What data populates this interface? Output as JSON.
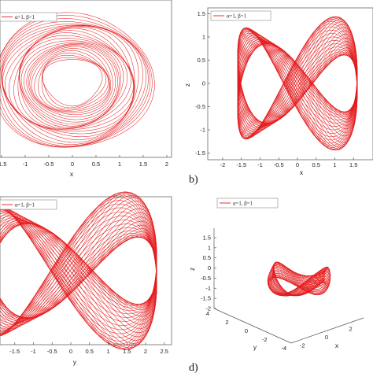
{
  "legend_label": "α=1, β=1",
  "curve_color": "#e41a1c",
  "chart_data": [
    {
      "panel": "a",
      "type": "line",
      "projection": "x-y",
      "xlabel": "x",
      "ylabel": "",
      "xlim": [
        -2,
        2
      ],
      "xticks": [
        "-1.5",
        "-1",
        "-0.5",
        "0",
        "0.5",
        "1",
        "1.5",
        "2"
      ],
      "yticks": [],
      "legend": "top-left",
      "series": [
        {
          "name": "α=1, β=1",
          "shape": "ring",
          "inner_radius": 0.6,
          "outer_radius": 1.7
        }
      ]
    },
    {
      "panel": "b",
      "type": "line",
      "projection": "x-z",
      "panel_label": "b)",
      "xlabel": "x",
      "ylabel": "z",
      "xlim": [
        -2,
        2
      ],
      "ylim": [
        -1.5,
        1.5
      ],
      "xticks": [
        "-2",
        "-1.5",
        "-1",
        "-0.5",
        "0",
        "0.5",
        "1",
        "1.5"
      ],
      "yticks": [
        "1.5",
        "1",
        "0.5",
        "0",
        "-0.5",
        "-1",
        "-1.5"
      ],
      "legend": "top-left",
      "series": [
        {
          "name": "α=1, β=1",
          "shape": "figure-eight lobes"
        }
      ]
    },
    {
      "panel": "c",
      "type": "line",
      "projection": "y-z",
      "xlabel": "y",
      "ylabel": "",
      "xlim": [
        -2.5,
        2.5
      ],
      "xticks": [
        "-1.5",
        "-1",
        "-0.5",
        "0",
        "0.5",
        "1",
        "1.5",
        "2",
        "2.5"
      ],
      "yticks": [],
      "legend": "top-left",
      "series": [
        {
          "name": "α=1, β=1",
          "shape": "figure-eight lobes"
        }
      ]
    },
    {
      "panel": "d",
      "type": "line",
      "projection": "3d",
      "panel_label": "d)",
      "xlabel": "x",
      "ylabel": "y",
      "zlabel": "z",
      "zlim": [
        -2,
        1.5
      ],
      "zticks": [
        "1.5",
        "1",
        "0.5",
        "0",
        "-0.5",
        "-1",
        "-1.5",
        "-2"
      ],
      "yticks": [
        "4",
        "2",
        "0",
        "-2",
        "-4"
      ],
      "xticks": [
        "-2",
        "0",
        "2"
      ],
      "legend": "top",
      "series": [
        {
          "name": "α=1, β=1",
          "shape": "saddle surface"
        }
      ]
    }
  ]
}
